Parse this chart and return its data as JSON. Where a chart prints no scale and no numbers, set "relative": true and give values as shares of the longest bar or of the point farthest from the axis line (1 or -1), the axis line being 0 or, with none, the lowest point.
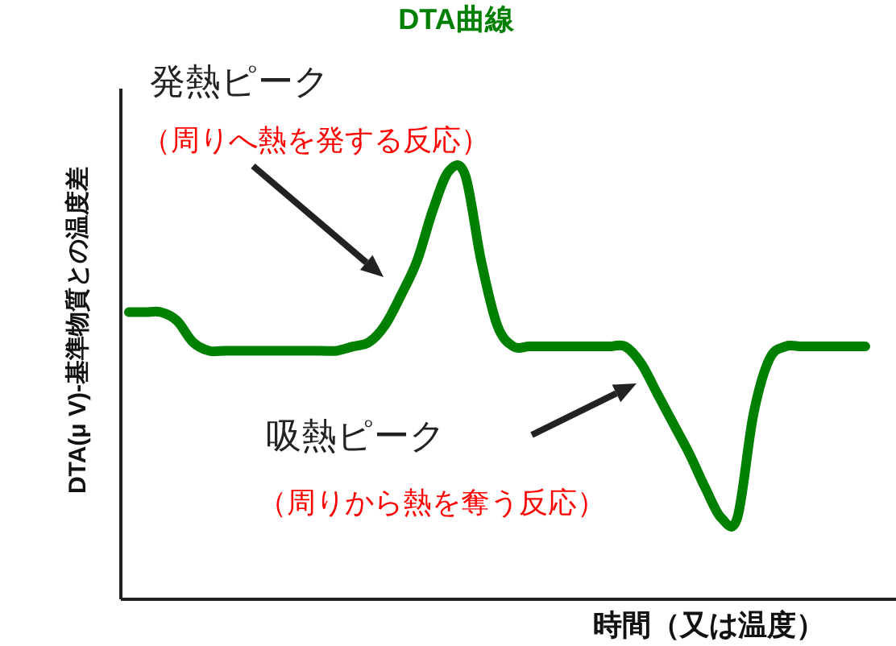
{
  "chart_data": {
    "type": "line",
    "relative": true,
    "title": "DTA曲線",
    "xlabel": "時間（又は温度）",
    "ylabel": "DTA(μ V)-基準物質との温度差",
    "categories": [
      null,
      null,
      null,
      null,
      null,
      null,
      null,
      null,
      null,
      null,
      null,
      null,
      null,
      null,
      null,
      null,
      null,
      null,
      null,
      null,
      null,
      null,
      null,
      null,
      null,
      null,
      null,
      null,
      null,
      null,
      null,
      null,
      null,
      null,
      null,
      null,
      null,
      null,
      null,
      null,
      null,
      null,
      null,
      null,
      null,
      null,
      null
    ],
    "series": [
      {
        "color": "#008000",
        "values": [
          0.67,
          0.67,
          0.67,
          0.65,
          0.6,
          0.58,
          0.58,
          0.58,
          0.58,
          0.58,
          0.58,
          0.58,
          0.58,
          0.58,
          0.59,
          0.6,
          0.64,
          0.71,
          0.79,
          0.91,
          1,
          0.99,
          0.79,
          0.64,
          0.59,
          0.59,
          0.59,
          0.59,
          0.59,
          0.59,
          0.59,
          0.59,
          0.55,
          0.48,
          0.41,
          0.34,
          0.26,
          0.19,
          0.19,
          0.43,
          0.56,
          0.59,
          0.59,
          0.59,
          0.59,
          0.59,
          0.59
        ]
      }
    ],
    "annotations": [
      "発熱ピーク",
      "（周りへ熱を発する反応）",
      "吸熱ピーク",
      "（周りから熱を奪う反応）"
    ],
    "line_style": "solid",
    "marker": "none"
  }
}
